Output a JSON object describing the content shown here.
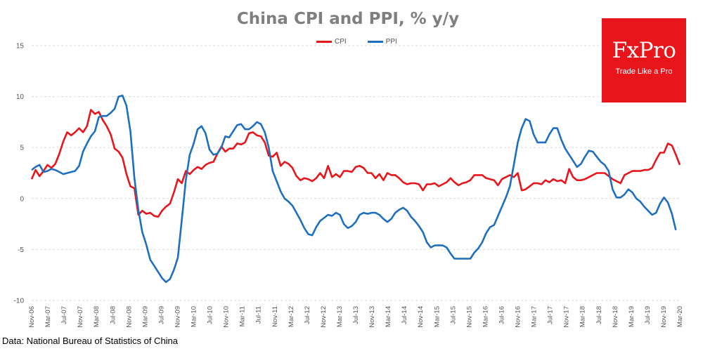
{
  "chart_data": {
    "type": "line",
    "title": "China CPI and PPI, % y/y",
    "source": "Data: National Bureau of Statistics of China",
    "ylim": [
      -10,
      15
    ],
    "y_ticks": [
      15,
      10,
      5,
      0,
      -5,
      -10
    ],
    "x_ticks": [
      "Nov-06",
      "Mar-07",
      "Jul-07",
      "Nov-07",
      "Mar-08",
      "Jul-08",
      "Nov-08",
      "Mar-09",
      "Jul-09",
      "Nov-09",
      "Mar-10",
      "Jul-10",
      "Nov-10",
      "Mar-11",
      "Jul-11",
      "Nov-11",
      "Mar-12",
      "Jul-12",
      "Nov-12",
      "Mar-13",
      "Jul-13",
      "Nov-13",
      "Mar-14",
      "Jul-14",
      "Nov-14",
      "Mar-15",
      "Jul-15",
      "Nov-15",
      "Mar-16",
      "Jul-16",
      "Nov-16",
      "Mar-17",
      "Jul-17",
      "Nov-17",
      "Mar-18",
      "Jul-18",
      "Nov-18",
      "Mar-19",
      "Jul-19",
      "Nov-19",
      "Mar-20"
    ],
    "grid": "horizontal dashed",
    "legend_position": "top-center",
    "series": [
      {
        "name": "CPI",
        "color": "#e8151b",
        "values": [
          1.9,
          2.8,
          2.2,
          2.7,
          3.3,
          3.0,
          3.4,
          4.4,
          5.6,
          6.5,
          6.2,
          6.5,
          6.9,
          6.5,
          7.1,
          8.7,
          8.3,
          8.5,
          7.7,
          7.1,
          6.3,
          4.9,
          4.6,
          4.0,
          2.4,
          1.2,
          1.0,
          -1.6,
          -1.2,
          -1.5,
          -1.4,
          -1.7,
          -1.8,
          -1.2,
          -0.8,
          -0.5,
          0.6,
          1.9,
          1.5,
          2.7,
          2.4,
          2.8,
          3.1,
          2.9,
          3.3,
          3.5,
          3.6,
          4.4,
          5.1,
          4.6,
          4.9,
          4.9,
          5.4,
          5.3,
          5.5,
          6.4,
          6.5,
          6.2,
          6.1,
          5.5,
          4.2,
          4.1,
          4.5,
          3.2,
          3.6,
          3.4,
          3.0,
          2.2,
          1.8,
          2.0,
          1.9,
          1.7,
          2.0,
          2.5,
          2.0,
          3.2,
          2.1,
          2.4,
          2.1,
          2.7,
          2.7,
          2.6,
          3.1,
          3.2,
          3.0,
          2.5,
          2.5,
          2.0,
          2.4,
          1.8,
          2.5,
          2.3,
          2.3,
          2.0,
          1.6,
          1.4,
          1.5,
          1.5,
          1.4,
          0.8,
          1.4,
          1.4,
          1.5,
          1.2,
          1.4,
          1.6,
          2.0,
          1.6,
          1.3,
          1.5,
          1.6,
          1.8,
          2.3,
          2.3,
          2.3,
          2.0,
          1.9,
          1.8,
          1.3,
          1.9,
          2.1,
          2.3,
          2.1,
          2.5,
          0.8,
          0.9,
          1.2,
          1.5,
          1.5,
          1.4,
          1.8,
          1.6,
          1.9,
          1.7,
          1.8,
          1.5,
          2.9,
          2.1,
          1.8,
          1.8,
          1.9,
          2.1,
          2.3,
          2.5,
          2.5,
          2.5,
          2.2,
          1.9,
          1.7,
          1.5,
          2.3,
          2.5,
          2.7,
          2.7,
          2.7,
          2.8,
          2.8,
          3.0,
          3.8,
          4.5,
          4.5,
          5.4,
          5.2,
          4.3,
          3.3
        ]
      },
      {
        "name": "PPI",
        "color": "#1f6fbf",
        "values": [
          2.8,
          3.1,
          3.3,
          2.6,
          2.7,
          2.9,
          2.8,
          2.6,
          2.4,
          2.5,
          2.6,
          2.7,
          3.2,
          4.6,
          5.4,
          6.1,
          6.6,
          8.0,
          8.1,
          8.1,
          8.4,
          8.8,
          10.0,
          10.1,
          9.1,
          6.6,
          2.0,
          -1.1,
          -3.3,
          -4.5,
          -6.0,
          -6.6,
          -7.2,
          -7.8,
          -8.2,
          -7.9,
          -7.0,
          -5.8,
          -2.1,
          1.8,
          4.3,
          5.4,
          6.8,
          7.1,
          6.4,
          4.8,
          4.3,
          4.4,
          5.0,
          6.1,
          6.0,
          6.6,
          7.2,
          7.3,
          6.8,
          6.8,
          7.1,
          7.5,
          7.3,
          6.5,
          5.0,
          2.7,
          1.7,
          0.7,
          0.0,
          -0.3,
          -0.7,
          -1.4,
          -2.1,
          -2.9,
          -3.5,
          -3.6,
          -2.8,
          -2.2,
          -1.9,
          -1.6,
          -1.7,
          -1.4,
          -1.6,
          -2.5,
          -2.9,
          -2.7,
          -2.3,
          -1.6,
          -1.4,
          -1.5,
          -1.4,
          -1.4,
          -1.6,
          -2.0,
          -2.3,
          -2.0,
          -1.4,
          -1.1,
          -0.9,
          -1.2,
          -1.8,
          -2.2,
          -2.7,
          -3.3,
          -4.3,
          -4.8,
          -4.6,
          -4.6,
          -4.6,
          -4.8,
          -5.4,
          -5.9,
          -5.9,
          -5.9,
          -5.9,
          -5.9,
          -5.3,
          -4.9,
          -4.3,
          -3.4,
          -2.8,
          -2.6,
          -1.7,
          -0.8,
          0.1,
          1.2,
          3.3,
          5.5,
          6.9,
          7.8,
          7.6,
          6.3,
          5.5,
          5.5,
          5.5,
          6.3,
          6.9,
          6.9,
          5.8,
          4.9,
          4.3,
          3.7,
          3.1,
          3.4,
          4.1,
          4.7,
          4.6,
          4.1,
          3.6,
          3.3,
          2.7,
          0.9,
          0.1,
          0.1,
          0.4,
          0.9,
          0.6,
          0.0,
          -0.3,
          -0.8,
          -1.2,
          -1.6,
          -1.4,
          -0.5,
          0.1,
          -0.4,
          -1.5,
          -3.1
        ]
      }
    ]
  },
  "logo": {
    "name": "FxPro",
    "tagline": "Trade Like a Pro"
  }
}
